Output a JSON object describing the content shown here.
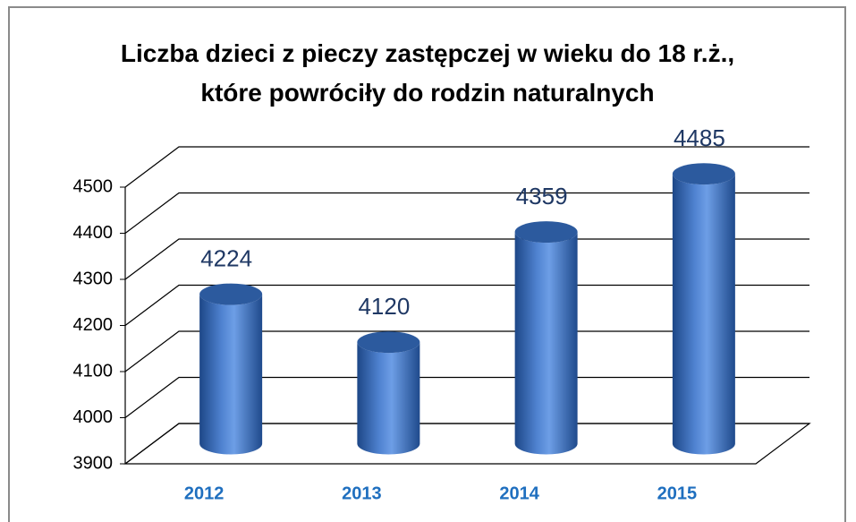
{
  "chart_data": {
    "type": "bar3d",
    "title": "Liczba dzieci z pieczy zastępczej w wieku do 18 r.ż., które powróciły do rodzin naturalnych",
    "categories": [
      "2012",
      "2013",
      "2014",
      "2015"
    ],
    "values": [
      4224,
      4120,
      4359,
      4485
    ],
    "color": "#3b6fbf",
    "ylim": [
      3900,
      4500
    ],
    "yticks": [
      3900,
      4000,
      4100,
      4200,
      4300,
      4400,
      4500
    ],
    "grid": true
  }
}
